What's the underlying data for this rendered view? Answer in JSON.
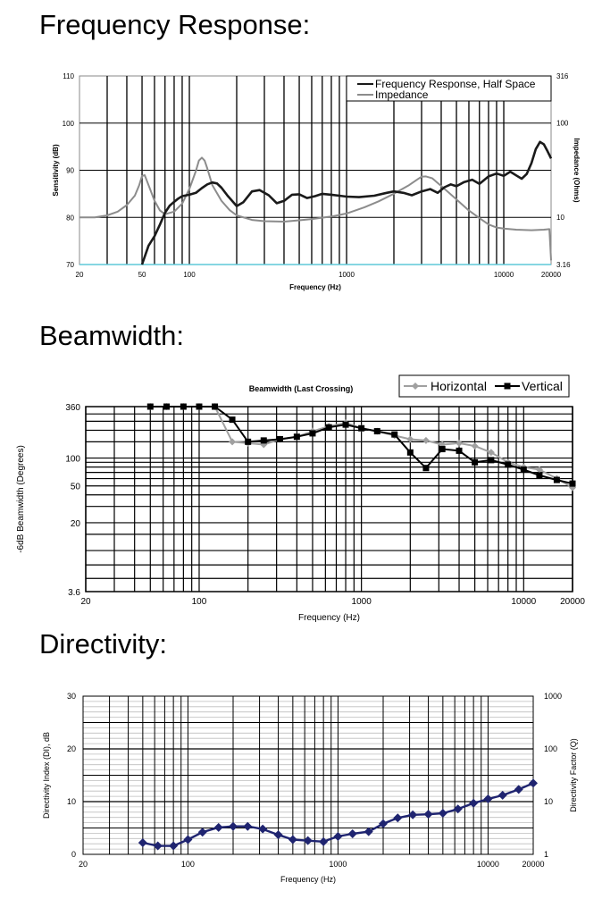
{
  "sections": {
    "frequency_response": "Frequency Response:",
    "beamwidth": "Beamwidth:",
    "directivity": "Directivity:"
  },
  "colors": {
    "grid": "#000000",
    "frequency_response": "#1a1a1a",
    "impedance": "#8c8c8c",
    "baseline": "#5fc8d8",
    "horizontal": "#a0a0a0",
    "vertical": "#000000",
    "directivity": "#1f2470"
  },
  "chart_data": [
    {
      "type": "line",
      "title": "",
      "xlabel": "Frequency (Hz)",
      "ylabel": "Sensitivity (dB)",
      "y2label": "Impedance (Ohms)",
      "x_scale": "log",
      "xlim": [
        20,
        20000
      ],
      "ylim": [
        70,
        110
      ],
      "y2lim": [
        3.16,
        316
      ],
      "y2_scale": "log",
      "x_tick_labels": [
        "20",
        "50",
        "100",
        "1000",
        "10000",
        "20000"
      ],
      "y_tick_labels": [
        "70",
        "80",
        "90",
        "100",
        "110"
      ],
      "y2_tick_labels": [
        "3.16",
        "10",
        "100",
        "316"
      ],
      "grid": true,
      "legend_position": "top-right",
      "series": [
        {
          "name": "Frequency Response, Half Space",
          "axis": "left",
          "x": [
            50,
            55,
            60,
            65,
            70,
            75,
            80,
            85,
            90,
            100,
            110,
            120,
            130,
            140,
            150,
            160,
            175,
            200,
            220,
            250,
            280,
            320,
            360,
            400,
            450,
            500,
            560,
            630,
            700,
            800,
            900,
            1000,
            1200,
            1500,
            1800,
            2000,
            2300,
            2600,
            3000,
            3400,
            3800,
            4200,
            4600,
            5000,
            5600,
            6300,
            7000,
            8000,
            9000,
            10000,
            11000,
            12000,
            13000,
            14000,
            15000,
            16000,
            17000,
            18000,
            19000,
            20000
          ],
          "y": [
            70.0,
            74.0,
            76.0,
            78.5,
            81.0,
            82.5,
            83.3,
            84.0,
            84.5,
            84.8,
            85.2,
            86.2,
            87.0,
            87.4,
            87.2,
            86.3,
            84.6,
            82.4,
            83.2,
            85.5,
            85.8,
            84.7,
            83.0,
            83.5,
            84.8,
            84.9,
            84.1,
            84.5,
            85.0,
            84.8,
            84.6,
            84.4,
            84.3,
            84.6,
            85.2,
            85.5,
            85.2,
            84.7,
            85.5,
            86.0,
            85.2,
            86.4,
            87.0,
            86.6,
            87.5,
            88.0,
            87.1,
            88.7,
            89.3,
            88.8,
            89.7,
            88.9,
            88.2,
            89.2,
            91.5,
            94.5,
            96.0,
            95.5,
            94.0,
            92.5
          ]
        },
        {
          "name": "Impedance",
          "axis": "right",
          "x": [
            20,
            25,
            30,
            35,
            40,
            45,
            48,
            50,
            52,
            55,
            60,
            65,
            70,
            80,
            90,
            100,
            110,
            115,
            120,
            125,
            130,
            140,
            160,
            180,
            200,
            250,
            300,
            400,
            500,
            600,
            800,
            1000,
            1300,
            1600,
            2000,
            2500,
            2800,
            3000,
            3200,
            3500,
            4000,
            5000,
            6000,
            7000,
            8000,
            9000,
            10000,
            12000,
            15000,
            18000,
            19500,
            20000
          ],
          "y": [
            10.0,
            10.0,
            10.5,
            11.5,
            13.5,
            17.0,
            22.0,
            27.5,
            28.0,
            22.0,
            15.0,
            11.8,
            10.8,
            11.5,
            14.0,
            20.0,
            31.0,
            40.0,
            43.0,
            40.0,
            33.0,
            22.0,
            15.0,
            12.0,
            10.5,
            9.4,
            9.1,
            9.0,
            9.3,
            9.6,
            10.2,
            11.0,
            12.8,
            14.8,
            17.8,
            22.0,
            25.0,
            27.0,
            27.2,
            26.0,
            21.5,
            15.5,
            11.8,
            9.8,
            8.4,
            7.8,
            7.6,
            7.4,
            7.3,
            7.4,
            7.5,
            3.5
          ]
        }
      ]
    },
    {
      "type": "line",
      "title": "Beamwidth (Last Crossing)",
      "xlabel": "Frequency (Hz)",
      "ylabel": "-6dB Beamwidth (Degrees)",
      "x_scale": "log",
      "y_scale": "log",
      "xlim": [
        20,
        20000
      ],
      "ylim": [
        3.6,
        360
      ],
      "x_tick_labels": [
        "20",
        "100",
        "1000",
        "10000",
        "20000"
      ],
      "y_tick_labels": [
        "3.6",
        "20",
        "50",
        "100",
        "360"
      ],
      "grid": true,
      "legend_position": "top-right",
      "series": [
        {
          "name": "Horizontal",
          "x": [
            50,
            63,
            80,
            100,
            125,
            160,
            200,
            250,
            315,
            400,
            500,
            630,
            800,
            1000,
            1250,
            1600,
            2000,
            2500,
            3150,
            4000,
            5000,
            6300,
            8000,
            10000,
            12500,
            16000,
            20000
          ],
          "y": [
            360,
            360,
            360,
            360,
            360,
            150,
            145,
            140,
            160,
            170,
            195,
            220,
            240,
            210,
            195,
            175,
            160,
            155,
            140,
            145,
            135,
            115,
            90,
            80,
            75,
            60,
            48
          ]
        },
        {
          "name": "Vertical",
          "x": [
            50,
            63,
            80,
            100,
            125,
            160,
            200,
            250,
            315,
            400,
            500,
            630,
            800,
            1000,
            1250,
            1600,
            2000,
            2500,
            3150,
            4000,
            5000,
            6300,
            8000,
            10000,
            12500,
            16000,
            20000
          ],
          "y": [
            360,
            360,
            360,
            360,
            360,
            260,
            150,
            155,
            160,
            170,
            185,
            215,
            230,
            210,
            195,
            180,
            115,
            78,
            125,
            120,
            90,
            95,
            85,
            75,
            65,
            58,
            53
          ]
        }
      ]
    },
    {
      "type": "line",
      "title": "",
      "xlabel": "Frequency (Hz)",
      "ylabel": "Directivity Index (DI), dB",
      "y2label": "Directivity Factor (Q)",
      "x_scale": "log",
      "xlim": [
        20,
        20000
      ],
      "ylim": [
        0,
        30
      ],
      "y2lim": [
        1,
        1000
      ],
      "y2_scale": "log",
      "x_tick_labels": [
        "20",
        "100",
        "1000",
        "10000",
        "20000"
      ],
      "y_tick_labels": [
        "0",
        "10",
        "20",
        "30"
      ],
      "y2_tick_labels": [
        "1",
        "10",
        "100",
        "1000"
      ],
      "grid": true,
      "series": [
        {
          "x": [
            50,
            63,
            80,
            100,
            125,
            160,
            200,
            250,
            315,
            400,
            500,
            630,
            800,
            1000,
            1250,
            1600,
            2000,
            2500,
            3150,
            4000,
            5000,
            6300,
            8000,
            10000,
            12500,
            16000,
            20000
          ],
          "y": [
            2.2,
            1.6,
            1.6,
            2.8,
            4.2,
            5.1,
            5.3,
            5.3,
            4.8,
            3.7,
            2.8,
            2.6,
            2.4,
            3.4,
            3.9,
            4.3,
            5.8,
            6.9,
            7.5,
            7.6,
            7.8,
            8.6,
            9.7,
            10.5,
            11.2,
            12.3,
            13.5
          ]
        }
      ]
    }
  ]
}
